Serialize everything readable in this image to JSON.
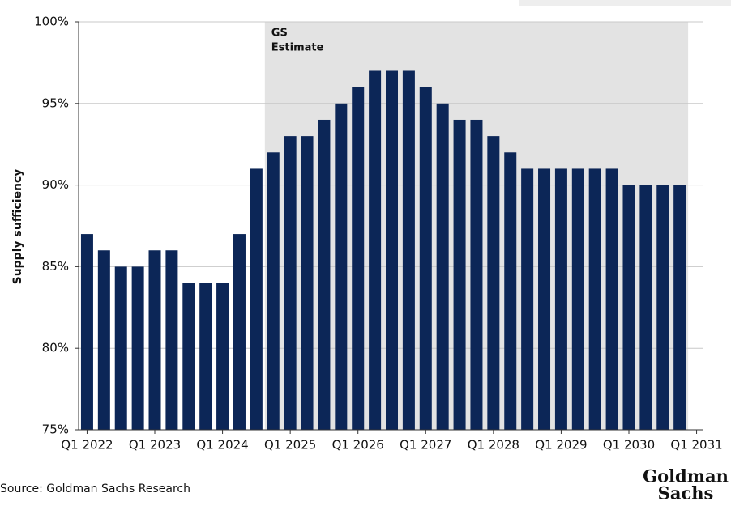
{
  "chart_data": {
    "type": "bar",
    "y_label": "Supply sufficiency",
    "annotation": [
      "GS",
      "Estimate"
    ],
    "estimate_from": 11,
    "source": "Source: Goldman Sachs Research",
    "logo": [
      "Goldman",
      "Sachs"
    ],
    "categories": [
      "Q1 2022",
      null,
      null,
      null,
      "Q1 2023",
      null,
      null,
      null,
      "Q1 2024",
      null,
      null,
      null,
      "Q1 2025",
      null,
      null,
      null,
      "Q1 2026",
      null,
      null,
      null,
      "Q1 2027",
      null,
      null,
      null,
      "Q1 2028",
      null,
      null,
      null,
      "Q1 2029",
      null,
      null,
      null,
      "Q1 2030",
      null,
      null,
      null,
      "Q1 2031"
    ],
    "values": [
      87,
      86,
      85,
      85,
      86,
      86,
      84,
      84,
      84,
      87,
      91,
      92,
      93,
      93,
      94,
      95,
      96,
      97,
      97,
      97,
      96,
      95,
      94,
      94,
      93,
      92,
      91,
      91,
      91,
      91,
      91,
      91,
      90,
      90,
      90,
      90,
      null
    ],
    "color": "#0c2657",
    "ylim": [
      75,
      100
    ],
    "yticks": [
      {
        "value": 75,
        "label": "75%"
      },
      {
        "value": 80,
        "label": "80%"
      },
      {
        "value": 85,
        "label": "85%"
      },
      {
        "value": 90,
        "label": "90%"
      },
      {
        "value": 95,
        "label": "95%"
      },
      {
        "value": 100,
        "label": "100%"
      }
    ],
    "grid": true
  }
}
